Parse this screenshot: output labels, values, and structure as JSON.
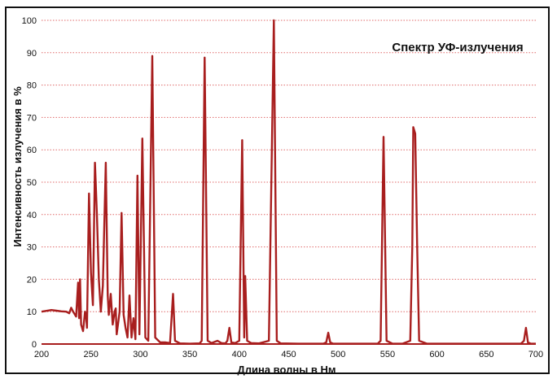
{
  "chart_data": {
    "type": "line",
    "title": "Спектр УФ-излучения",
    "xlabel": "Длина волны в Нм",
    "ylabel": "Интенсивность излучения в %",
    "xlim": [
      200,
      700
    ],
    "ylim": [
      0,
      100
    ],
    "x_ticks": [
      200,
      250,
      300,
      350,
      400,
      450,
      500,
      550,
      600,
      650,
      700
    ],
    "x_tick_labels": [
      "200",
      "250",
      "300",
      "350",
      "400",
      "450",
      "500",
      "550",
      "600",
      "650",
      "700"
    ],
    "y_ticks": [
      0,
      10,
      20,
      30,
      40,
      50,
      60,
      70,
      80,
      90,
      100
    ],
    "y_tick_labels": [
      "0",
      "10",
      "20",
      "30",
      "40",
      "50",
      "60",
      "70",
      "80",
      "90",
      "100"
    ],
    "grid": "horizontal dotted",
    "line_color": "#a81e1e",
    "grid_color": "#e06a6a",
    "baseline_color": "#a81e1e",
    "series": [
      {
        "values": [
          [
            200,
            10
          ],
          [
            210,
            10.5
          ],
          [
            215,
            10.3
          ],
          [
            220,
            10.1
          ],
          [
            225,
            10
          ],
          [
            228,
            9.5
          ],
          [
            230,
            11.2
          ],
          [
            232,
            10
          ],
          [
            235,
            8.5
          ],
          [
            237,
            19
          ],
          [
            238,
            8
          ],
          [
            239,
            20
          ],
          [
            240,
            6
          ],
          [
            242,
            4
          ],
          [
            244,
            10
          ],
          [
            245,
            9
          ],
          [
            246,
            5
          ],
          [
            248,
            46.5
          ],
          [
            250,
            22
          ],
          [
            252,
            12
          ],
          [
            254,
            56
          ],
          [
            256,
            40
          ],
          [
            258,
            20
          ],
          [
            260,
            10
          ],
          [
            262,
            18
          ],
          [
            265,
            56
          ],
          [
            267,
            15
          ],
          [
            268,
            9
          ],
          [
            270,
            15.5
          ],
          [
            272,
            6
          ],
          [
            274,
            10
          ],
          [
            275,
            11
          ],
          [
            276,
            3
          ],
          [
            279,
            10
          ],
          [
            281,
            40.5
          ],
          [
            283,
            9
          ],
          [
            285,
            5
          ],
          [
            287,
            2
          ],
          [
            289,
            15
          ],
          [
            291,
            2
          ],
          [
            293,
            8
          ],
          [
            295,
            1.5
          ],
          [
            297,
            52
          ],
          [
            299,
            3
          ],
          [
            302,
            63.5
          ],
          [
            305,
            2
          ],
          [
            308,
            1
          ],
          [
            312,
            89
          ],
          [
            315,
            2
          ],
          [
            320,
            0.5
          ],
          [
            325,
            0.5
          ],
          [
            330,
            0.3
          ],
          [
            333,
            15.5
          ],
          [
            335,
            1
          ],
          [
            340,
            0.2
          ],
          [
            350,
            0.1
          ],
          [
            360,
            0.2
          ],
          [
            362,
            1
          ],
          [
            365,
            88.5
          ],
          [
            368,
            1
          ],
          [
            372,
            0.3
          ],
          [
            378,
            1
          ],
          [
            382,
            0.3
          ],
          [
            386,
            0.2
          ],
          [
            388,
            1
          ],
          [
            390,
            5
          ],
          [
            392,
            0.5
          ],
          [
            396,
            0.3
          ],
          [
            400,
            1
          ],
          [
            403,
            63
          ],
          [
            405,
            2
          ],
          [
            406,
            21
          ],
          [
            408,
            1
          ],
          [
            412,
            0.3
          ],
          [
            420,
            0.2
          ],
          [
            430,
            1
          ],
          [
            435,
            100
          ],
          [
            438,
            1
          ],
          [
            442,
            0.2
          ],
          [
            460,
            0.1
          ],
          [
            485,
            0.1
          ],
          [
            488,
            0.5
          ],
          [
            490,
            3.5
          ],
          [
            492,
            0.5
          ],
          [
            495,
            0.1
          ],
          [
            520,
            0.1
          ],
          [
            540,
            0.1
          ],
          [
            543,
            1
          ],
          [
            546,
            64
          ],
          [
            549,
            1
          ],
          [
            555,
            0.1
          ],
          [
            565,
            0.1
          ],
          [
            573,
            1
          ],
          [
            575,
            30
          ],
          [
            576,
            67
          ],
          [
            577,
            66
          ],
          [
            578,
            65
          ],
          [
            580,
            30
          ],
          [
            582,
            1
          ],
          [
            590,
            0.1
          ],
          [
            620,
            0.1
          ],
          [
            650,
            0.1
          ],
          [
            685,
            0.1
          ],
          [
            688,
            1
          ],
          [
            690,
            5
          ],
          [
            692,
            0.5
          ],
          [
            695,
            0.1
          ],
          [
            700,
            0.1
          ]
        ]
      }
    ]
  }
}
